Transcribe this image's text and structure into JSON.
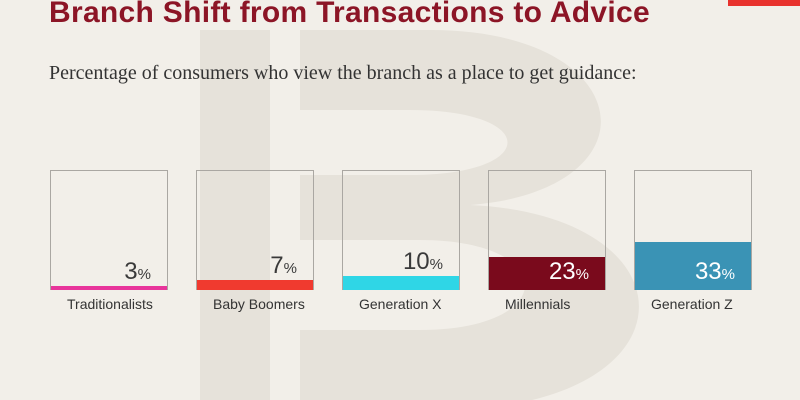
{
  "title": "Branch Shift from Transactions to Advice",
  "subtitle": "Percentage of consumers who view the branch as a place to get guidance:",
  "colors": {
    "title": "#8c1526",
    "accent": "#e8322d",
    "background": "#f2efe9"
  },
  "chart_data": {
    "type": "bar",
    "title": "Branch Shift from Transactions to Advice",
    "subtitle": "Percentage of consumers who view the branch as a place to get guidance:",
    "categories": [
      "Traditionalists",
      "Baby Boomers",
      "Generation X",
      "Millennials",
      "Generation Z"
    ],
    "values": [
      3,
      7,
      10,
      23,
      33
    ],
    "value_suffix": "%",
    "colors": [
      "#e8359b",
      "#f03a2f",
      "#2fd6e6",
      "#7a0a1c",
      "#3a93b5"
    ],
    "ylim": [
      0,
      100
    ],
    "grid": false,
    "legend": "none"
  }
}
